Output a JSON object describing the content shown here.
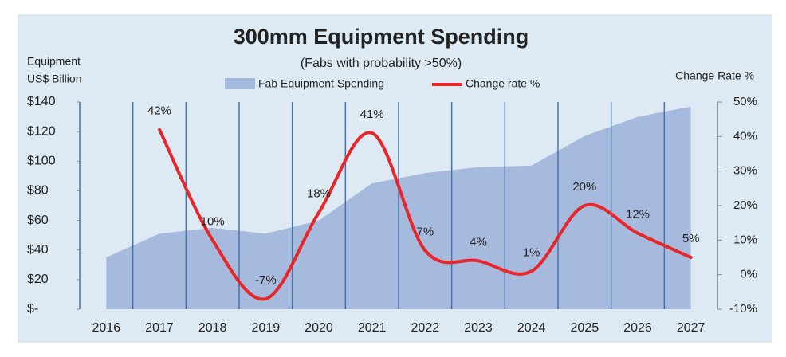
{
  "chart_data": {
    "type": "area-line",
    "title": "300mm Equipment Spending",
    "subtitle": "(Fabs with probability >50%)",
    "ylabel": [
      "Equipment",
      "US$ Billion"
    ],
    "y2label": "Change Rate %",
    "categories": [
      "2016",
      "2017",
      "2018",
      "2019",
      "2020",
      "2021",
      "2022",
      "2023",
      "2024",
      "2025",
      "2026",
      "2027"
    ],
    "series": [
      {
        "name": "Fab Equipment Spending",
        "color": "#a6badd",
        "type": "area",
        "values": [
          35,
          51,
          55,
          51,
          60,
          85,
          92,
          96,
          97,
          117,
          130,
          137
        ]
      },
      {
        "name": "Change rate %",
        "color": "#e8262a",
        "type": "line",
        "axis": "y2",
        "values": [
          null,
          42,
          10,
          -7,
          18,
          41,
          7,
          4,
          1,
          20,
          12,
          5
        ],
        "value_labels": [
          null,
          "42%",
          "10%",
          "-7%",
          "18%",
          "41%",
          "7%",
          "4%",
          "1%",
          "20%",
          "12%",
          "5%"
        ]
      }
    ],
    "ylim": [
      0,
      140
    ],
    "yticks": [
      {
        "value": 0,
        "label": "$-"
      },
      {
        "value": 20,
        "label": "$20"
      },
      {
        "value": 40,
        "label": "$40"
      },
      {
        "value": 60,
        "label": "$60"
      },
      {
        "value": 80,
        "label": "$80"
      },
      {
        "value": 100,
        "label": "$100"
      },
      {
        "value": 120,
        "label": "$120"
      },
      {
        "value": 140,
        "label": "$140"
      }
    ],
    "y2lim": [
      -10,
      50
    ],
    "y2ticks": [
      {
        "value": -10,
        "label": "-10%"
      },
      {
        "value": 0,
        "label": "0%"
      },
      {
        "value": 10,
        "label": "10%"
      },
      {
        "value": 20,
        "label": "20%"
      },
      {
        "value": 30,
        "label": "30%"
      },
      {
        "value": 40,
        "label": "40%"
      },
      {
        "value": 50,
        "label": "50%"
      }
    ],
    "vertical_grid": true
  }
}
